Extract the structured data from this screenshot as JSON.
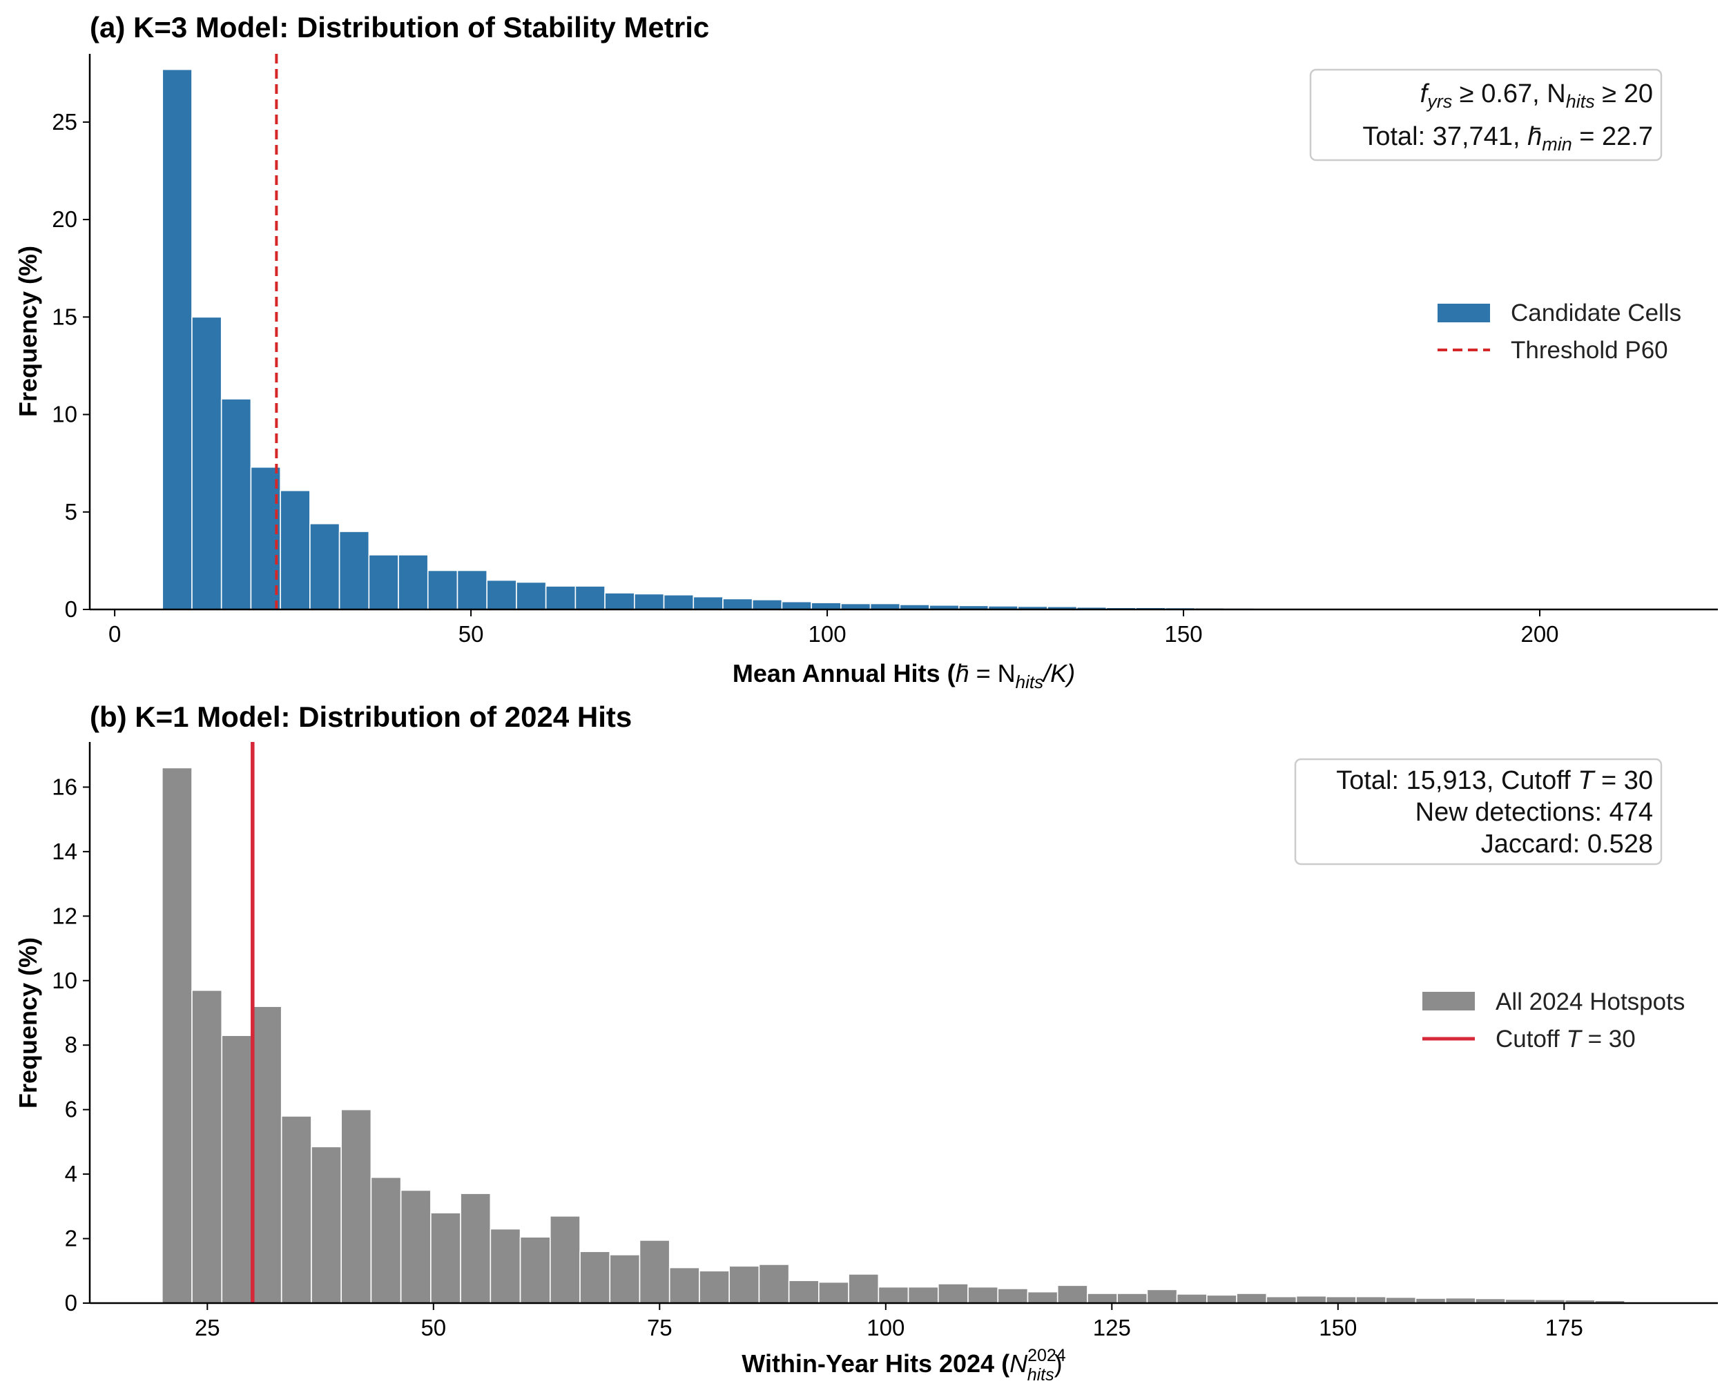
{
  "chart_data": [
    {
      "panel": "a",
      "type": "bar",
      "title": "(a) K=3 Model: Distribution of Stability Metric",
      "xlabel": "Mean Annual Hits (h̄ = N_hits/K)",
      "xlabel_parts": {
        "main": "Mean Annual Hits (",
        "hbar": "h̄",
        "eq": " = N",
        "sub": "hits",
        "tail": "/K)"
      },
      "ylabel": "Frequency (%)",
      "xlim": [
        -3.5,
        225
      ],
      "ylim": [
        0,
        28.5
      ],
      "xticks": [
        0,
        50,
        100,
        150,
        200
      ],
      "yticks": [
        0,
        5,
        10,
        15,
        20,
        25
      ],
      "bin_start": 6.7,
      "bin_width": 4.14,
      "values": [
        27.7,
        15.0,
        10.8,
        7.3,
        6.1,
        4.4,
        4.0,
        2.8,
        2.8,
        2.0,
        2.0,
        1.5,
        1.4,
        1.2,
        1.2,
        0.85,
        0.8,
        0.75,
        0.65,
        0.55,
        0.5,
        0.4,
        0.35,
        0.3,
        0.3,
        0.25,
        0.22,
        0.2,
        0.18,
        0.16,
        0.15,
        0.12,
        0.1,
        0.1,
        0.09,
        0.08,
        0.07,
        0.06,
        0.05,
        0.05,
        0.04,
        0.03,
        0.03,
        0.02,
        0.02,
        0.02,
        0.01,
        0.01,
        0.01
      ],
      "bar_color": "#2E75AB",
      "threshold": {
        "value": 22.7,
        "label": "Threshold P60",
        "color": "#D62728",
        "style": "dashed"
      },
      "legend": {
        "position": "center-right",
        "series_label": "Candidate Cells"
      },
      "annotation": {
        "line1": {
          "f": "f",
          "f_sub": "yrs",
          "mid": " ≥ 0.67, N",
          "n_sub": "hits",
          "tail": " ≥ 20"
        },
        "line2": {
          "pre": "Total: 37,741, ",
          "h": "h̄",
          "h_sub": "min",
          "tail": " = 22.7"
        },
        "position": "top-right"
      }
    },
    {
      "panel": "b",
      "type": "bar",
      "title": "(b) K=1 Model: Distribution of 2024 Hits",
      "xlabel": "Within-Year Hits 2024 (N^2024_hits)",
      "xlabel_parts": {
        "main": "Within-Year Hits 2024 (",
        "n": "N",
        "sup": "2024",
        "sub": "hits",
        "tail": ")"
      },
      "ylabel": "Frequency (%)",
      "xlim": [
        12,
        192
      ],
      "ylim": [
        0,
        17.4
      ],
      "xticks": [
        25,
        50,
        75,
        100,
        125,
        150,
        175
      ],
      "yticks": [
        0,
        2,
        4,
        6,
        8,
        10,
        12,
        14,
        16
      ],
      "bin_start": 20,
      "bin_width": 3.3,
      "values": [
        16.6,
        9.7,
        8.3,
        9.2,
        5.8,
        4.85,
        6.0,
        3.9,
        3.5,
        2.8,
        3.4,
        2.3,
        2.05,
        2.7,
        1.6,
        1.5,
        1.95,
        1.1,
        1.0,
        1.15,
        1.2,
        0.7,
        0.65,
        0.9,
        0.5,
        0.5,
        0.6,
        0.5,
        0.45,
        0.35,
        0.55,
        0.3,
        0.3,
        0.42,
        0.28,
        0.25,
        0.3,
        0.2,
        0.22,
        0.2,
        0.2,
        0.18,
        0.15,
        0.16,
        0.14,
        0.12,
        0.11,
        0.1,
        0.08
      ],
      "bar_color": "#8C8C8C",
      "threshold": {
        "value": 30,
        "label_pre": "Cutoff ",
        "label_T": "T",
        "label_post": " = 30",
        "color": "#D62839",
        "style": "solid"
      },
      "legend": {
        "position": "center-right",
        "series_label": "All 2024 Hotspots"
      },
      "annotation": {
        "line1": {
          "pre": "Total: 15,913, Cutoff ",
          "T": "T",
          "tail": " = 30"
        },
        "line2": "New detections: 474",
        "line3": "Jaccard: 0.528",
        "position": "top-right"
      }
    }
  ]
}
